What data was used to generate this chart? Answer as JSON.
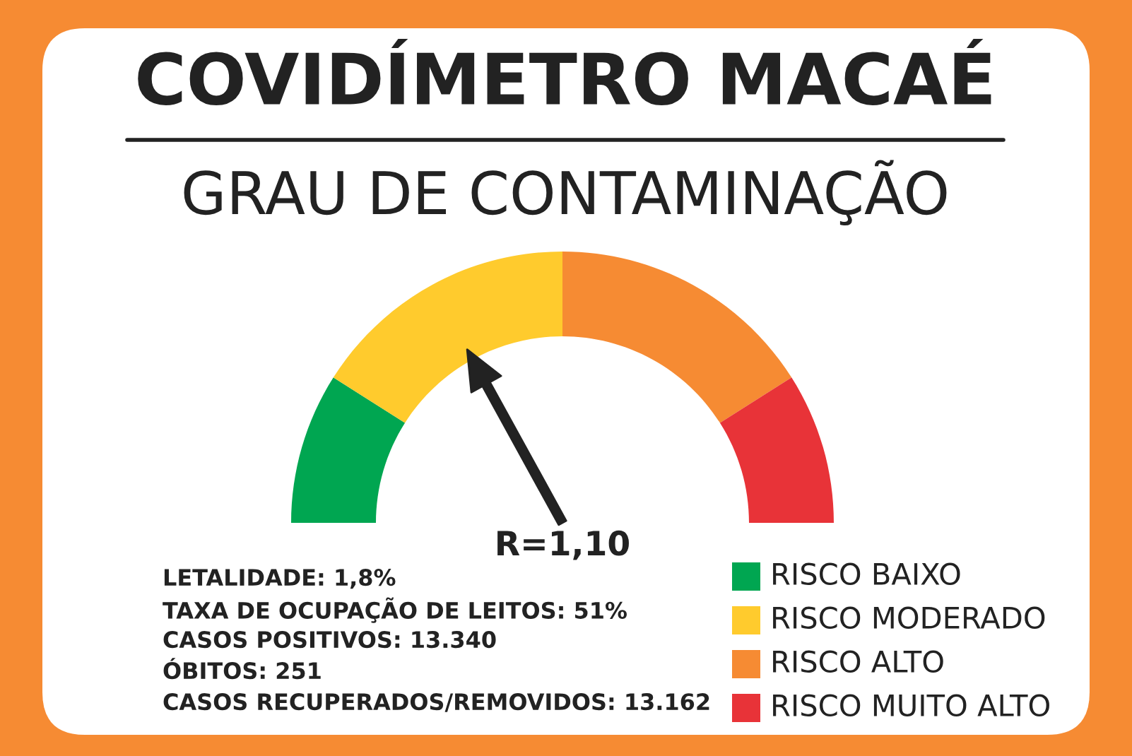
{
  "chart_data": {
    "type": "donut",
    "title": "COVIDÍMETRO MACAÉ",
    "subtitle": "GRAU DE CONTAMINAÇÃO",
    "categories": [
      "RISCO BAIXO",
      "RISCO MODERADO",
      "RISCO ALTO",
      "RISCO MUITO ALTO"
    ],
    "values": [
      18,
      32,
      32,
      18
    ],
    "colors": [
      "#00a651",
      "#ffcb2d",
      "#f68b33",
      "#e83338"
    ],
    "needle": "RISCO MODERADO",
    "legend": "bottom right",
    "annotations": [
      "R=1,10",
      "LETALIDADE: 1,8%",
      "TAXA DE OCUPAÇÃO DE LEITOS: 51%",
      "CASOS POSITIVOS: 13.340",
      "ÓBITOS: 251",
      "CASOS RECUPERADOS/REMOVIDOS: 13.162"
    ]
  }
}
